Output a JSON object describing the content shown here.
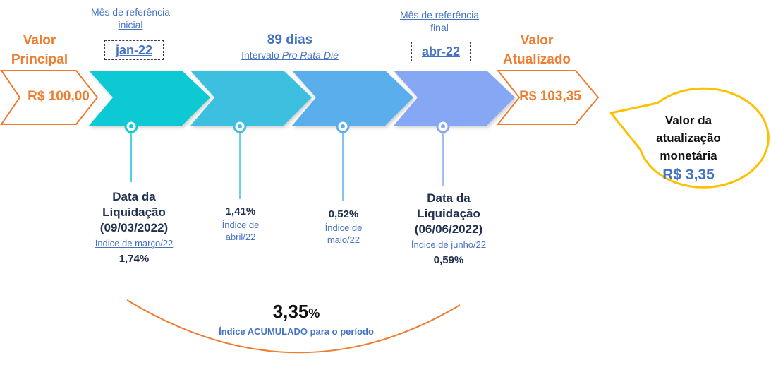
{
  "principal": {
    "label": "Valor Principal",
    "value": "R$ 100,00"
  },
  "updated": {
    "label": "Valor Atualizado",
    "value": "R$ 103,35"
  },
  "ref_initial": {
    "line1": "Mês de referência",
    "line2": "inicial",
    "month": "jan-22"
  },
  "ref_final": {
    "line1": "Mês de referência",
    "line2": "final",
    "month": "abr-22"
  },
  "interval": {
    "days": "89 dias",
    "prefix": "Intervalo ",
    "emphasis": "Pro Rata Die"
  },
  "markers": [
    {
      "title_lines": [
        "Data da",
        "Liquidação",
        "(09/03/2022)"
      ],
      "index_label": "Índice de março/22",
      "value": "1,74%"
    },
    {
      "value": "1,41%",
      "index_label_lines": [
        "Índice de",
        "abril/22"
      ]
    },
    {
      "value": "0,52%",
      "index_label_lines": [
        "Índice de",
        "maio/22"
      ]
    },
    {
      "title_lines": [
        "Data da",
        "Liquidação",
        "(06/06/2022)"
      ],
      "index_label": "Índice de junho/22",
      "value": "0,59%"
    }
  ],
  "accumulated": {
    "value": "3,35",
    "unit": "%",
    "label": "Índice ACUMULADO para o período"
  },
  "bubble": {
    "line1": "Valor da",
    "line2": "atualização",
    "line3": "monetária",
    "value": "R$ 3,35"
  },
  "colors": {
    "orange": "#ED7D31",
    "teal": "#0FC9D3",
    "cyan": "#3EBFE0",
    "sky": "#5AAEEC",
    "periwinkle": "#86A8F4",
    "yellow": "#FFC000",
    "blue_text": "#4472C4",
    "navy_text": "#1F2F4F"
  }
}
